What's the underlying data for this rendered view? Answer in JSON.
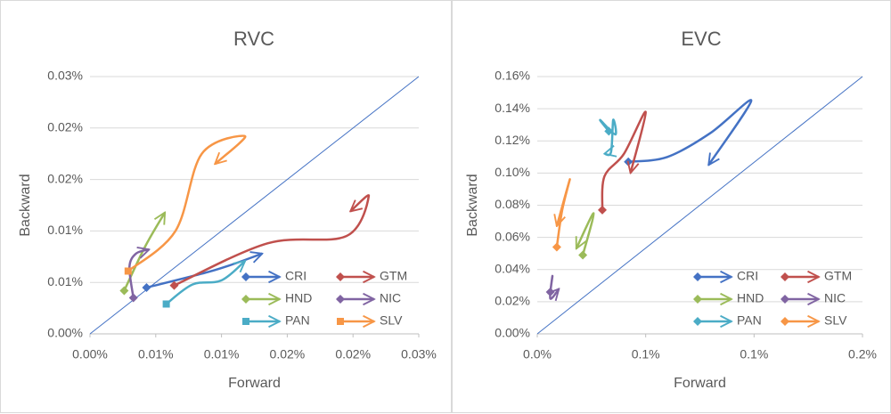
{
  "chart_data": [
    {
      "type": "line",
      "title": "RVC",
      "x_label": "Forward",
      "y_label": "Backward",
      "xlim": [
        0,
        0.025
      ],
      "ylim": [
        0,
        0.025
      ],
      "xticks": [
        {
          "value": 0,
          "label": "0.00%"
        },
        {
          "value": 0.005,
          "label": "0.01%"
        },
        {
          "value": 0.01,
          "label": "0.01%"
        },
        {
          "value": 0.015,
          "label": "0.02%"
        },
        {
          "value": 0.02,
          "label": "0.02%"
        },
        {
          "value": 0.025,
          "label": "0.03%"
        }
      ],
      "yticks": [
        {
          "value": 0,
          "label": "0.00%"
        },
        {
          "value": 0.005,
          "label": "0.01%"
        },
        {
          "value": 0.01,
          "label": "0.01%"
        },
        {
          "value": 0.015,
          "label": "0.02%"
        },
        {
          "value": 0.02,
          "label": "0.02%"
        },
        {
          "value": 0.025,
          "label": "0.03%"
        }
      ],
      "grid": true,
      "legend": "lower right",
      "series": [
        {
          "name": "CRI",
          "color": "#4472c4",
          "marker": "diamond",
          "x": [
            0.0043,
            0.0095,
            0.0131
          ],
          "values": [
            0.0045,
            0.0062,
            0.0078
          ]
        },
        {
          "name": "GTM",
          "color": "#c0504d",
          "marker": "diamond",
          "x": [
            0.0064,
            0.0135,
            0.0195,
            0.0212,
            0.0198
          ],
          "values": [
            0.0047,
            0.0088,
            0.0095,
            0.0134,
            0.0119
          ]
        },
        {
          "name": "HND",
          "color": "#9bbb59",
          "marker": "diamond",
          "x": [
            0.0026,
            0.0042,
            0.0057
          ],
          "values": [
            0.0042,
            0.0085,
            0.0118
          ]
        },
        {
          "name": "NIC",
          "color": "#8064a2",
          "marker": "diamond",
          "x": [
            0.0033,
            0.003,
            0.0035,
            0.0045
          ],
          "values": [
            0.0035,
            0.0065,
            0.0078,
            0.0082
          ]
        },
        {
          "name": "PAN",
          "color": "#4bacc6",
          "marker": "square",
          "x": [
            0.0058,
            0.0078,
            0.01,
            0.0118
          ],
          "values": [
            0.0029,
            0.0048,
            0.0052,
            0.0071
          ]
        },
        {
          "name": "SLV",
          "color": "#f79646",
          "marker": "square",
          "x": [
            0.0029,
            0.0065,
            0.0085,
            0.0118,
            0.0095
          ],
          "values": [
            0.0061,
            0.01,
            0.0175,
            0.0192,
            0.0165
          ]
        }
      ]
    },
    {
      "type": "line",
      "title": "EVC",
      "x_label": "Forward",
      "y_label": "Backward",
      "xlim": [
        0,
        0.15
      ],
      "ylim": [
        0,
        0.16
      ],
      "xticks": [
        {
          "value": 0,
          "label": "0.0%"
        },
        {
          "value": 0.05,
          "label": "0.1%"
        },
        {
          "value": 0.1,
          "label": "0.1%"
        },
        {
          "value": 0.15,
          "label": "0.2%"
        }
      ],
      "yticks": [
        {
          "value": 0,
          "label": "0.00%"
        },
        {
          "value": 0.02,
          "label": "0.02%"
        },
        {
          "value": 0.04,
          "label": "0.04%"
        },
        {
          "value": 0.06,
          "label": "0.06%"
        },
        {
          "value": 0.08,
          "label": "0.08%"
        },
        {
          "value": 0.1,
          "label": "0.10%"
        },
        {
          "value": 0.12,
          "label": "0.12%"
        },
        {
          "value": 0.14,
          "label": "0.14%"
        },
        {
          "value": 0.16,
          "label": "0.16%"
        }
      ],
      "grid": true,
      "legend": "lower right",
      "series": [
        {
          "name": "CRI",
          "color": "#4472c4",
          "marker": "diamond",
          "x": [
            0.042,
            0.06,
            0.08,
            0.0987,
            0.079
          ],
          "values": [
            0.107,
            0.11,
            0.125,
            0.145,
            0.105
          ]
        },
        {
          "name": "GTM",
          "color": "#c0504d",
          "marker": "diamond",
          "x": [
            0.03,
            0.031,
            0.04,
            0.05,
            0.043
          ],
          "values": [
            0.077,
            0.098,
            0.112,
            0.138,
            0.1
          ]
        },
        {
          "name": "HND",
          "color": "#9bbb59",
          "marker": "diamond",
          "x": [
            0.021,
            0.026,
            0.018
          ],
          "values": [
            0.049,
            0.075,
            0.053
          ]
        },
        {
          "name": "NIC",
          "color": "#8064a2",
          "marker": "diamond",
          "x": [
            0.006,
            0.007,
            0.006,
            0.01
          ],
          "values": [
            0.026,
            0.036,
            0.022,
            0.028
          ]
        },
        {
          "name": "PAN",
          "color": "#4bacc6",
          "marker": "diamond",
          "x": [
            0.033,
            0.029,
            0.036,
            0.035,
            0.034,
            0.031
          ],
          "values": [
            0.126,
            0.133,
            0.124,
            0.133,
            0.113,
            0.112
          ]
        },
        {
          "name": "SLV",
          "color": "#f79646",
          "marker": "diamond",
          "x": [
            0.009,
            0.0115,
            0.015,
            0.009
          ],
          "values": [
            0.054,
            0.077,
            0.096,
            0.067
          ]
        }
      ]
    }
  ]
}
